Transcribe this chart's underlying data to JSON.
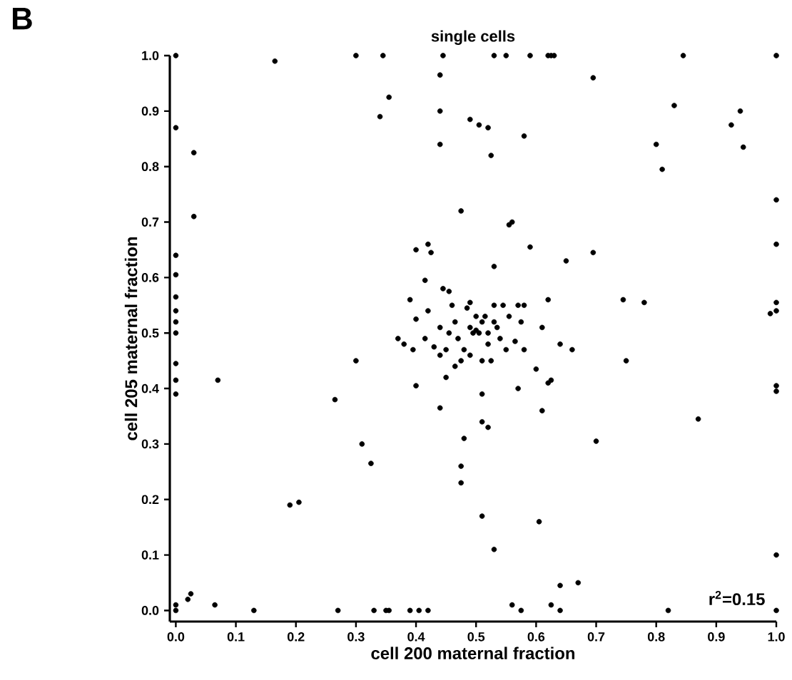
{
  "chart_data": {
    "type": "scatter",
    "title": "single cells",
    "xlabel": "cell 200 maternal fraction",
    "ylabel": "cell 205 maternal fraction",
    "annotations": [
      "B",
      "r$^{2}$=0.15"
    ],
    "xlim": [
      -0.01,
      1.0
    ],
    "ylim": [
      -0.02,
      1.0
    ],
    "xticks": [
      {
        "value": 0,
        "label": "0.0"
      },
      0.1,
      0.2,
      0.3,
      0.4,
      0.5,
      0.6,
      0.7,
      0.8,
      0.9,
      {
        "value": 1,
        "label": "1.0"
      }
    ],
    "yticks": [
      {
        "value": 0,
        "label": "0.0"
      },
      0.1,
      0.2,
      0.3,
      0.4,
      0.5,
      0.6,
      0.7,
      0.8,
      0.9,
      {
        "value": 1,
        "label": "1.0"
      }
    ],
    "series": [
      {
        "color": "#000000",
        "x": [
          0,
          0,
          0,
          0,
          0,
          0,
          0,
          0,
          0,
          0,
          0,
          0,
          0,
          0.03,
          0.03,
          0.02,
          0.025,
          0.065,
          0.07,
          0.13,
          0.165,
          0.19,
          0.205,
          0.265,
          0.27,
          0.3,
          0.31,
          0.325,
          0.33,
          0.35,
          0.355,
          0.39,
          0.405,
          0.42,
          0.345,
          0.355,
          0.34,
          0.37,
          0.3,
          0.4,
          0.445,
          0.53,
          0.55,
          0.59,
          0.62,
          0.625,
          0.63,
          0.845,
          1.0,
          0.44,
          0.44,
          0.44,
          0.49,
          0.505,
          0.525,
          0.52,
          0.58,
          0.695,
          0.83,
          0.94,
          0.925,
          0.945,
          0.8,
          0.81,
          1.0,
          1.0,
          1.0,
          1.0,
          0.99,
          0.555,
          0.56,
          0.475,
          0.53,
          0.59,
          0.65,
          0.695,
          0.745,
          0.78,
          0.61,
          0.58,
          0.62,
          0.64,
          0.66,
          0.75,
          0.87,
          0.7,
          0.62,
          0.625,
          0.6,
          0.61,
          0.57,
          0.605,
          0.53,
          0.51,
          0.56,
          0.575,
          0.625,
          0.64,
          0.64,
          0.67,
          0.82,
          1.0,
          1.0,
          1.0,
          1.0,
          0.52,
          0.51,
          0.51,
          0.48,
          0.475,
          0.475,
          0.44,
          0.45,
          0.42,
          0.4,
          0.42,
          0.425,
          0.415,
          0.4,
          0.39,
          0.38,
          0.395,
          0.43,
          0.415,
          0.44,
          0.445,
          0.455,
          0.46,
          0.455,
          0.44,
          0.45,
          0.465,
          0.47,
          0.48,
          0.485,
          0.49,
          0.49,
          0.495,
          0.5,
          0.505,
          0.51,
          0.515,
          0.52,
          0.52,
          0.525,
          0.53,
          0.535,
          0.54,
          0.545,
          0.55,
          0.555,
          0.565,
          0.57,
          0.575,
          0.58,
          0.5,
          0.49,
          0.51,
          0.53,
          0.475,
          0.465
        ],
        "values": [
          1.0,
          0.87,
          0.64,
          0.605,
          0.565,
          0.54,
          0.52,
          0.5,
          0.445,
          0.415,
          0.39,
          0.01,
          0.0,
          0.825,
          0.71,
          0.02,
          0.03,
          0.01,
          0.415,
          0.0,
          0.99,
          0.19,
          0.195,
          0.38,
          0.0,
          1.0,
          0.3,
          0.265,
          0.0,
          0.0,
          0.0,
          0.0,
          0.0,
          0.0,
          1.0,
          0.925,
          0.89,
          0.49,
          0.45,
          0.405,
          1.0,
          1.0,
          1.0,
          1.0,
          1.0,
          1.0,
          1.0,
          1.0,
          1.0,
          0.965,
          0.9,
          0.84,
          0.885,
          0.875,
          0.82,
          0.87,
          0.855,
          0.96,
          0.91,
          0.9,
          0.875,
          0.835,
          0.84,
          0.795,
          0.74,
          0.66,
          0.555,
          0.54,
          0.535,
          0.695,
          0.7,
          0.72,
          0.62,
          0.655,
          0.63,
          0.645,
          0.56,
          0.555,
          0.51,
          0.55,
          0.56,
          0.48,
          0.47,
          0.45,
          0.345,
          0.305,
          0.41,
          0.415,
          0.435,
          0.36,
          0.4,
          0.16,
          0.11,
          0.17,
          0.01,
          0.0,
          0.01,
          0.0,
          0.045,
          0.05,
          0.0,
          0.0,
          0.1,
          0.395,
          0.405,
          0.33,
          0.34,
          0.39,
          0.31,
          0.26,
          0.23,
          0.365,
          0.42,
          0.54,
          0.65,
          0.66,
          0.645,
          0.595,
          0.525,
          0.56,
          0.48,
          0.47,
          0.475,
          0.49,
          0.51,
          0.58,
          0.575,
          0.55,
          0.5,
          0.46,
          0.47,
          0.52,
          0.49,
          0.47,
          0.545,
          0.555,
          0.51,
          0.5,
          0.505,
          0.5,
          0.52,
          0.53,
          0.5,
          0.48,
          0.45,
          0.55,
          0.51,
          0.49,
          0.55,
          0.47,
          0.53,
          0.485,
          0.55,
          0.52,
          0.47,
          0.53,
          0.46,
          0.45,
          0.52,
          0.45,
          0.44
        ]
      }
    ]
  }
}
